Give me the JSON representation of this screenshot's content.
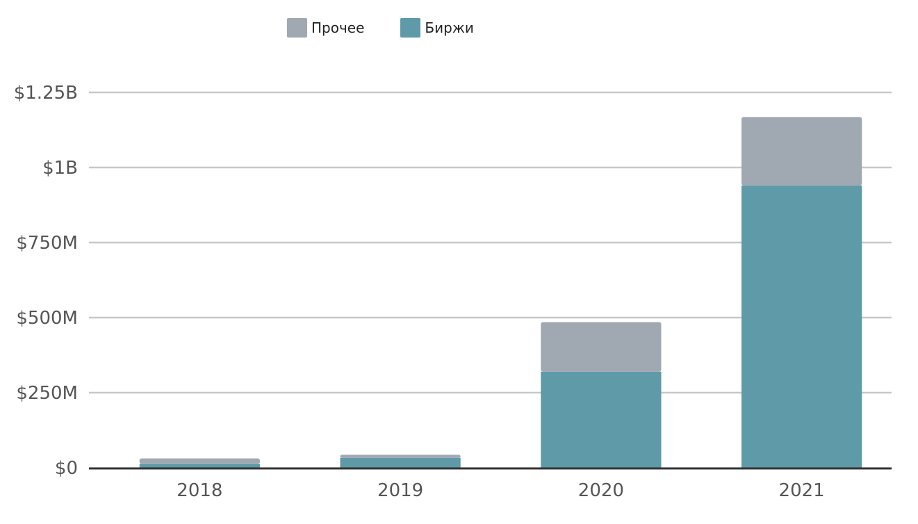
{
  "chart_data": {
    "type": "bar",
    "stacked": true,
    "categories": [
      "2018",
      "2019",
      "2020",
      "2021"
    ],
    "series": [
      {
        "name": "Биржи",
        "color": "#5e9aa8",
        "values": [
          12,
          33,
          320,
          940
        ]
      },
      {
        "name": "Прочее",
        "color": "#a0a8b1",
        "values": [
          19,
          10,
          165,
          228
        ]
      }
    ],
    "ylim": [
      0,
      1250000000
    ],
    "yunit_scale": 1000000,
    "yticks": [
      {
        "value": 0,
        "label": "$0"
      },
      {
        "value": 250,
        "label": "$250M"
      },
      {
        "value": 500,
        "label": "$500M"
      },
      {
        "value": 750,
        "label": "$750M"
      },
      {
        "value": 1000,
        "label": "$1B"
      },
      {
        "value": 1250,
        "label": "$1.25B"
      }
    ],
    "grid": true,
    "legend_position": "top-left",
    "legend": [
      {
        "name": "Прочее",
        "color": "#a0a8b1"
      },
      {
        "name": "Биржи",
        "color": "#5e9aa8"
      }
    ]
  }
}
